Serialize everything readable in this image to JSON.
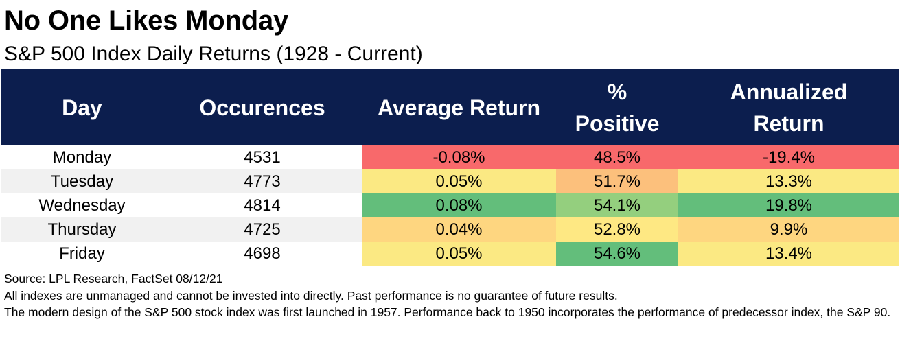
{
  "title": "No One Likes Monday",
  "subtitle": "S&P 500 Index Daily Returns (1928 - Current)",
  "chart_data": {
    "type": "table",
    "columns": [
      "Day",
      "Occurences",
      "Average Return",
      "% Positive",
      "Annualized Return"
    ],
    "rows": [
      {
        "day": "Monday",
        "occurrences": "4531",
        "avg_return": "-0.08%",
        "pct_positive": "48.5%",
        "annualized": "-19.4%"
      },
      {
        "day": "Tuesday",
        "occurrences": "4773",
        "avg_return": "0.05%",
        "pct_positive": "51.7%",
        "annualized": "13.3%"
      },
      {
        "day": "Wednesday",
        "occurrences": "4814",
        "avg_return": "0.08%",
        "pct_positive": "54.1%",
        "annualized": "19.8%"
      },
      {
        "day": "Thursday",
        "occurrences": "4725",
        "avg_return": "0.04%",
        "pct_positive": "52.8%",
        "annualized": "9.9%"
      },
      {
        "day": "Friday",
        "occurrences": "4698",
        "avg_return": "0.05%",
        "pct_positive": "54.6%",
        "annualized": "13.4%"
      }
    ],
    "heatmap_colors": {
      "avg_return": [
        "#f8696b",
        "#fbe983",
        "#63be7b",
        "#fed680",
        "#fbe983"
      ],
      "pct_positive": [
        "#f8696b",
        "#fcc07c",
        "#94cf7e",
        "#fee883",
        "#63be7b"
      ],
      "annualized": [
        "#f8696b",
        "#fbe983",
        "#63be7b",
        "#fed680",
        "#fbe983"
      ]
    }
  },
  "notes": [
    "Source: LPL Research, FactSet 08/12/21",
    "All indexes are unmanaged and cannot be invested into directly. Past performance is no guarantee of future results.",
    "The modern design of the S&P 500 stock index was first launched in 1957. Performance back to 1950 incorporates the performance of predecessor index, the S&P 90."
  ],
  "colors": {
    "header_bg": "#0c1e4e",
    "header_text": "#ffffff",
    "row_stripe": "#f1f1f1"
  }
}
